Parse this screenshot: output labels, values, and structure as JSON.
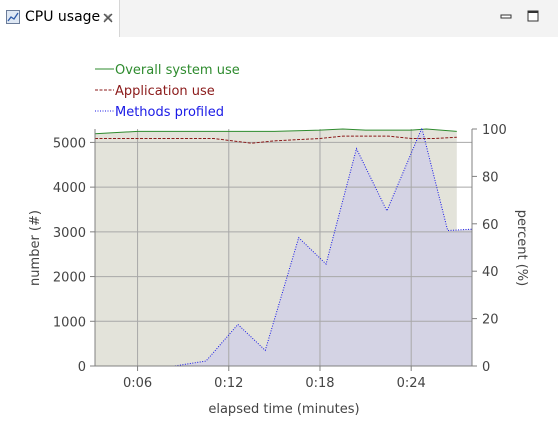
{
  "tab": {
    "title": "CPU usage",
    "icon": "cpu-chart-icon",
    "close_icon": "close-icon"
  },
  "window_controls": {
    "minimize_icon": "minimize-icon",
    "maximize_icon": "maximize-icon"
  },
  "chart_data": {
    "type": "line",
    "title": "",
    "xlabel": "elapsed time (minutes)",
    "ylabel_left": "number (#)",
    "ylabel_right": "percent (%)",
    "xlim": [
      3.2,
      28.0
    ],
    "ylim_left": [
      0,
      5300
    ],
    "ylim_right": [
      0,
      100
    ],
    "x_ticks": [
      6,
      12,
      18,
      24
    ],
    "x_tick_labels": [
      "0:06",
      "0:12",
      "0:18",
      "0:24"
    ],
    "y_left_ticks": [
      0,
      1000,
      2000,
      3000,
      4000,
      5000
    ],
    "y_left_tick_labels": [
      "0",
      "1000",
      "2000",
      "3000",
      "4000",
      "5000"
    ],
    "y_right_ticks": [
      0,
      20,
      40,
      60,
      80,
      100
    ],
    "y_right_tick_labels": [
      "0",
      "20",
      "40",
      "60",
      "80",
      "100"
    ],
    "grid": true,
    "legend_position": "top-left",
    "series": [
      {
        "name": "Overall system use",
        "axis": "right",
        "style": "solid",
        "color": "#2e8b2e",
        "fill": "#e3e3da",
        "x": [
          3.2,
          6.0,
          9.0,
          12.0,
          15.0,
          18.0,
          19.5,
          21.0,
          24.0,
          25.0,
          27.0
        ],
        "y": [
          98,
          99,
          99,
          99,
          99,
          99.5,
          100,
          99.5,
          99.5,
          100,
          99
        ]
      },
      {
        "name": "Application use",
        "axis": "right",
        "style": "dashed",
        "color": "#8b1a1a",
        "x": [
          3.2,
          6.0,
          9.0,
          11.0,
          13.5,
          15.0,
          18.0,
          19.5,
          21.0,
          22.5,
          24.0,
          25.5,
          27.0
        ],
        "y": [
          96,
          96,
          96,
          96,
          94,
          95,
          96,
          97,
          97,
          97,
          96,
          96,
          96.5
        ]
      },
      {
        "name": "Methods profiled",
        "axis": "left",
        "style": "dotted",
        "color": "#1a1ae6",
        "fill": "#d4d3e4",
        "x": [
          3.2,
          8.4,
          10.5,
          12.6,
          14.4,
          16.6,
          18.4,
          20.4,
          22.4,
          24.7,
          26.4,
          28.0
        ],
        "y": [
          0,
          0,
          110,
          930,
          350,
          2870,
          2280,
          4860,
          3470,
          5320,
          3030,
          3060
        ]
      }
    ]
  }
}
